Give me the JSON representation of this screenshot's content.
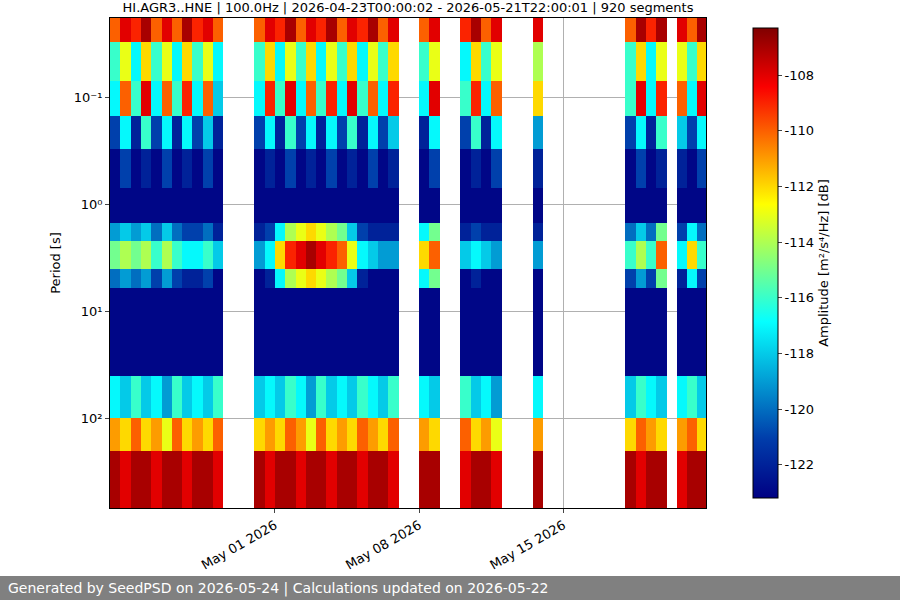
{
  "chart_data": {
    "type": "heatmap",
    "title": "HI.AGR3..HNE | 100.0Hz | 2026-04-23T00:00:02 - 2026-05-21T22:00:01 | 920 segments",
    "ylabel": "Period [s]",
    "colorbar_label": "Amplitude [m²/s⁴/Hz] [dB]",
    "footer": "Generated by SeedPSD on 2026-05-24 | Calculations updated on 2026-05-22",
    "color": "jet",
    "log": "y",
    "grid": true,
    "xlim": [
      "2026-04-23 00:00:02",
      "2026-05-21 22:00:01"
    ],
    "xticks": [
      {
        "value": "2026-05-01",
        "label": "May 01 2026"
      },
      {
        "value": "2026-05-08",
        "label": "May 08 2026"
      },
      {
        "value": "2026-05-15",
        "label": "May 15 2026"
      }
    ],
    "ylim": [
      690,
      0.018
    ],
    "yticks": [
      {
        "value": 0.1,
        "label": "10⁻¹"
      },
      {
        "value": 1,
        "label": "10⁰"
      },
      {
        "value": 10,
        "label": "10¹"
      },
      {
        "value": 100,
        "label": "10²"
      }
    ],
    "zlim": [
      -123.2,
      -106.3
    ],
    "zticks": [
      -122,
      -120,
      -118,
      -116,
      -114,
      -112,
      -110,
      -108
    ],
    "x": [
      "2026-04-23 06:00",
      "2026-04-23 18:00",
      "2026-04-24 06:00",
      "2026-04-24 18:00",
      "2026-04-25 06:00",
      "2026-04-25 18:00",
      "2026-04-26 06:00",
      "2026-04-26 18:00",
      "2026-04-27 06:00",
      "2026-04-27 18:00",
      "2026-04-28 06:00",
      "2026-04-28 18:00",
      "2026-04-29 06:00",
      "2026-04-29 18:00",
      "2026-04-30 06:00",
      "2026-04-30 18:00",
      "2026-05-01 06:00",
      "2026-05-01 18:00",
      "2026-05-02 06:00",
      "2026-05-02 18:00",
      "2026-05-03 06:00",
      "2026-05-03 18:00",
      "2026-05-04 06:00",
      "2026-05-04 18:00",
      "2026-05-05 06:00",
      "2026-05-05 18:00",
      "2026-05-06 06:00",
      "2026-05-06 18:00",
      "2026-05-07 06:00",
      "2026-05-07 18:00",
      "2026-05-08 06:00",
      "2026-05-08 18:00",
      "2026-05-09 06:00",
      "2026-05-09 18:00",
      "2026-05-10 06:00",
      "2026-05-10 18:00",
      "2026-05-11 06:00",
      "2026-05-11 18:00",
      "2026-05-12 06:00",
      "2026-05-12 18:00",
      "2026-05-13 06:00",
      "2026-05-13 18:00",
      "2026-05-14 06:00",
      "2026-05-14 18:00",
      "2026-05-15 06:00",
      "2026-05-15 18:00",
      "2026-05-16 06:00",
      "2026-05-16 18:00",
      "2026-05-17 06:00",
      "2026-05-17 18:00",
      "2026-05-18 06:00",
      "2026-05-18 18:00",
      "2026-05-19 06:00",
      "2026-05-19 18:00",
      "2026-05-20 06:00",
      "2026-05-20 18:00",
      "2026-05-21 06:00",
      "2026-05-21 18:00"
    ],
    "y_edges": [
      0.018,
      0.03,
      0.07,
      0.15,
      0.3,
      0.7,
      1.5,
      2.2,
      4,
      6,
      40,
      100,
      200,
      690
    ],
    "z": [
      [
        -110,
        -108,
        -109,
        -107,
        -110,
        -108,
        -110,
        -107,
        -109,
        -108,
        -110,
        null,
        null,
        null,
        -110,
        -108,
        -109,
        -107,
        -110,
        -108,
        -109,
        -107,
        -110,
        -108,
        -109,
        -107,
        -110,
        -108,
        null,
        null,
        -110,
        -108,
        null,
        null,
        -109,
        -107,
        -110,
        -108,
        null,
        null,
        null,
        -108,
        null,
        null,
        null,
        null,
        null,
        null,
        null,
        null,
        -110,
        -107,
        -109,
        -107,
        null,
        -108,
        -110,
        -107
      ],
      [
        -116,
        -113,
        -117,
        -112,
        -116,
        -113,
        -117,
        -112,
        -116,
        -113,
        -117,
        null,
        null,
        null,
        -116,
        -112,
        -117,
        -113,
        -116,
        -112,
        -117,
        -113,
        -116,
        -112,
        -117,
        -113,
        -116,
        -112,
        null,
        null,
        -116,
        -113,
        null,
        null,
        -117,
        -112,
        -116,
        -113,
        null,
        null,
        null,
        -114,
        null,
        null,
        null,
        null,
        null,
        null,
        null,
        null,
        -116,
        -112,
        -117,
        -113,
        null,
        -113,
        -116,
        -112
      ],
      [
        -117,
        -110,
        -116,
        -108,
        -117,
        -110,
        -116,
        -109,
        -117,
        -110,
        -118,
        null,
        null,
        null,
        -117,
        -109,
        -116,
        -108,
        -117,
        -110,
        -116,
        -109,
        -117,
        -108,
        -116,
        -110,
        -117,
        -109,
        null,
        null,
        -117,
        -108,
        null,
        null,
        -116,
        -109,
        -117,
        -110,
        null,
        null,
        null,
        -112,
        null,
        null,
        null,
        null,
        null,
        null,
        null,
        null,
        -116,
        -108,
        -117,
        -109,
        null,
        -110,
        -117,
        -108
      ],
      [
        -121,
        -117,
        -122,
        -116,
        -121,
        -117,
        -122,
        -117,
        -121,
        -118,
        -122,
        null,
        null,
        null,
        -121,
        -117,
        -122,
        -116,
        -121,
        -117,
        -122,
        -117,
        -121,
        -116,
        -122,
        -117,
        -121,
        -118,
        null,
        null,
        -122,
        -117,
        null,
        null,
        -121,
        -116,
        -122,
        -117,
        null,
        null,
        null,
        -119,
        null,
        null,
        null,
        null,
        null,
        null,
        null,
        null,
        -121,
        -117,
        -122,
        -116,
        null,
        -118,
        -121,
        -117
      ],
      [
        -123,
        -121,
        -123,
        -122,
        -123,
        -121,
        -123,
        -122,
        -123,
        -121,
        -123,
        null,
        null,
        null,
        -123,
        -122,
        -123,
        -121,
        -123,
        -122,
        -123,
        -121,
        -123,
        -122,
        -123,
        -121,
        -123,
        -122,
        null,
        null,
        -123,
        -121,
        null,
        null,
        -123,
        -122,
        -123,
        -121,
        null,
        null,
        null,
        -122,
        null,
        null,
        null,
        null,
        null,
        null,
        null,
        null,
        -123,
        -121,
        -123,
        -122,
        null,
        -122,
        -123,
        -121
      ],
      [
        -123,
        -123,
        -123,
        -123,
        -123,
        -123,
        -123,
        -123,
        -123,
        -123,
        -123,
        null,
        null,
        null,
        -123,
        -123,
        -123,
        -123,
        -123,
        -123,
        -123,
        -123,
        -123,
        -123,
        -123,
        -123,
        -123,
        -123,
        null,
        null,
        -123,
        -123,
        null,
        null,
        -123,
        -123,
        -123,
        -123,
        null,
        null,
        null,
        -123,
        null,
        null,
        null,
        null,
        null,
        null,
        null,
        null,
        -123,
        -123,
        -123,
        -123,
        null,
        -123,
        -123,
        -123
      ],
      [
        -119,
        -118,
        -119,
        -118,
        -120,
        -118,
        -120,
        -121,
        -121,
        -120,
        -122,
        null,
        null,
        null,
        -122,
        -121,
        -117,
        -114,
        -113,
        -112,
        -113,
        -114,
        -115,
        -118,
        -121,
        -122,
        -122,
        -122,
        null,
        null,
        -117,
        -115,
        null,
        null,
        -122,
        -121,
        -122,
        -122,
        null,
        null,
        null,
        -122,
        null,
        null,
        null,
        null,
        null,
        null,
        null,
        null,
        -120,
        -118,
        -120,
        -115,
        null,
        -121,
        -117,
        -120
      ],
      [
        -115,
        -114,
        -115,
        -114,
        -116,
        -114,
        -116,
        -117,
        -117,
        -116,
        -118,
        null,
        null,
        null,
        -119,
        -117,
        -112,
        -109,
        -108,
        -107,
        -108,
        -109,
        -110,
        -113,
        -117,
        -118,
        -119,
        -119,
        null,
        null,
        -112,
        -110,
        null,
        null,
        -118,
        -117,
        -118,
        -119,
        null,
        null,
        null,
        -119,
        null,
        null,
        null,
        null,
        null,
        null,
        null,
        null,
        -116,
        -114,
        -116,
        -110,
        null,
        -117,
        -112,
        -116
      ],
      [
        -120,
        -119,
        -120,
        -119,
        -121,
        -119,
        -121,
        -122,
        -122,
        -121,
        -123,
        null,
        null,
        null,
        -123,
        -122,
        -117,
        -114,
        -113,
        -112,
        -113,
        -114,
        -115,
        -118,
        -122,
        -123,
        -123,
        -123,
        null,
        null,
        -117,
        -115,
        null,
        null,
        -123,
        -122,
        -123,
        -123,
        null,
        null,
        null,
        -123,
        null,
        null,
        null,
        null,
        null,
        null,
        null,
        null,
        -121,
        -119,
        -121,
        -115,
        null,
        -122,
        -117,
        -121
      ],
      [
        -123,
        -123,
        -123,
        -123,
        -123,
        -123,
        -123,
        -123,
        -123,
        -123,
        -123,
        null,
        null,
        null,
        -123,
        -123,
        -123,
        -123,
        -123,
        -123,
        -123,
        -123,
        -123,
        -123,
        -123,
        -123,
        -123,
        -123,
        null,
        null,
        -123,
        -123,
        null,
        null,
        -123,
        -123,
        -123,
        -123,
        null,
        null,
        null,
        -123,
        null,
        null,
        null,
        null,
        null,
        null,
        null,
        null,
        -123,
        -123,
        -123,
        -123,
        null,
        -123,
        -123,
        -123
      ],
      [
        -117,
        -118,
        -116,
        -118,
        -117,
        -119,
        -116,
        -118,
        -117,
        -118,
        -116,
        null,
        null,
        null,
        -118,
        -117,
        -118,
        -116,
        -117,
        -119,
        -116,
        -118,
        -117,
        -118,
        -116,
        -117,
        -118,
        -116,
        null,
        null,
        -117,
        -118,
        null,
        null,
        -116,
        -118,
        -117,
        -119,
        null,
        null,
        null,
        -117,
        null,
        null,
        null,
        null,
        null,
        null,
        null,
        null,
        -118,
        -116,
        -117,
        -118,
        null,
        -117,
        -116,
        -118
      ],
      [
        -111,
        -112,
        -110,
        -112,
        -111,
        -113,
        -110,
        -112,
        -111,
        -112,
        -110,
        null,
        null,
        null,
        -112,
        -111,
        -112,
        -110,
        -111,
        -113,
        -110,
        -112,
        -111,
        -112,
        -110,
        -111,
        -112,
        -110,
        null,
        null,
        -111,
        -112,
        null,
        null,
        -110,
        -112,
        -111,
        -113,
        null,
        null,
        null,
        -111,
        null,
        null,
        null,
        null,
        null,
        null,
        null,
        null,
        -112,
        -110,
        -111,
        -112,
        null,
        -111,
        -110,
        -112
      ],
      [
        -107,
        -108,
        -107,
        -107,
        -108,
        -107,
        -107,
        -108,
        -107,
        -107,
        -108,
        null,
        null,
        null,
        -107,
        -108,
        -107,
        -107,
        -108,
        -107,
        -107,
        -108,
        -107,
        -107,
        -108,
        -107,
        -107,
        -108,
        null,
        null,
        -107,
        -107,
        null,
        null,
        -108,
        -107,
        -107,
        -108,
        null,
        null,
        null,
        -107,
        null,
        null,
        null,
        null,
        null,
        null,
        null,
        null,
        -107,
        -108,
        -107,
        -107,
        null,
        -108,
        -107,
        -107
      ]
    ]
  }
}
